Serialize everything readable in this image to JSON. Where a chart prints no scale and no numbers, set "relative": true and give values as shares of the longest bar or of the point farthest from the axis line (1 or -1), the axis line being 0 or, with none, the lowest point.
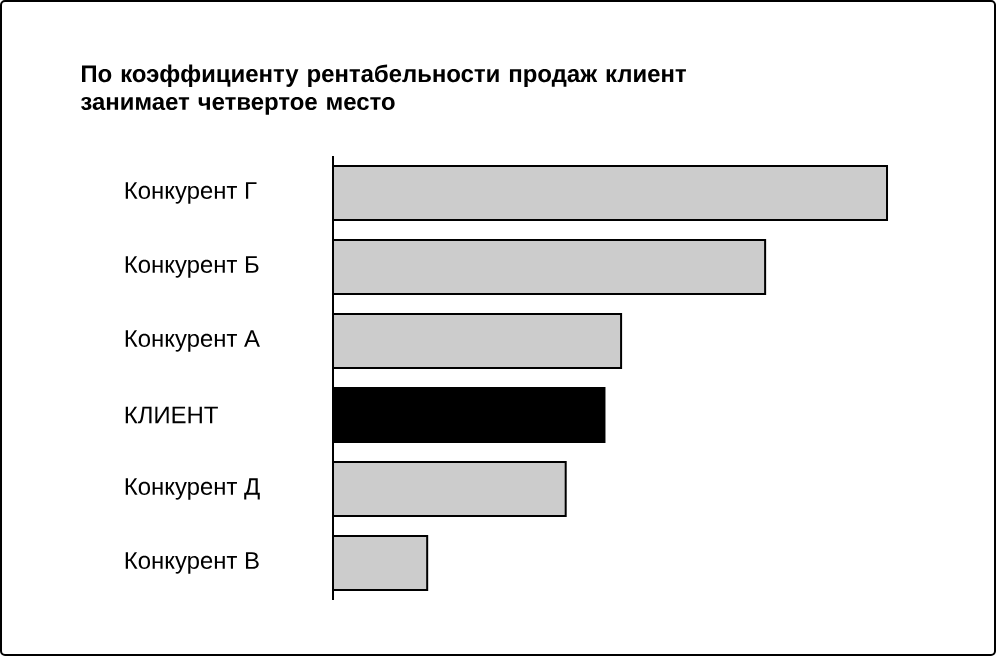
{
  "chart_data": {
    "type": "bar",
    "orientation": "horizontal",
    "relative": true,
    "title": "По коэффициенту рентабельности продаж клиент занимает четвертое место",
    "categories": [
      "Конкурент Г",
      "Конкурент Б",
      "Конкурент А",
      "КЛИЕНТ",
      "Конкурент Д",
      "Конкурент В"
    ],
    "values": [
      1,
      0.78,
      0.52,
      0.49,
      0.42,
      0.17
    ],
    "colors": [
      "#cccccc",
      "#cccccc",
      "#cccccc",
      "#000000",
      "#cccccc",
      "#cccccc"
    ]
  }
}
